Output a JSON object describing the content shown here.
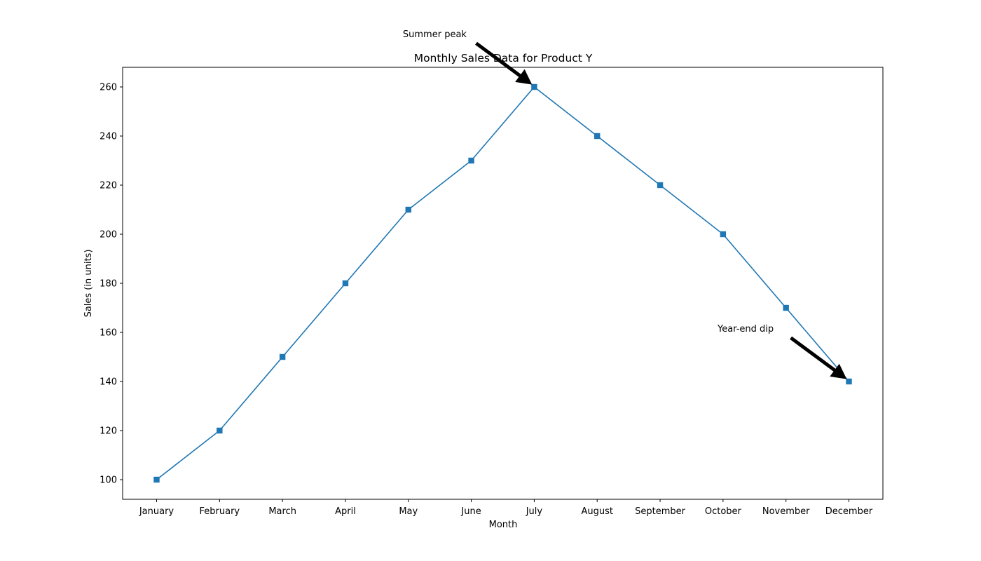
{
  "chart_data": {
    "type": "line",
    "title": "Monthly Sales Data for Product Y",
    "xlabel": "Month",
    "ylabel": "Sales (in units)",
    "categories": [
      "January",
      "February",
      "March",
      "April",
      "May",
      "June",
      "July",
      "August",
      "September",
      "October",
      "November",
      "December"
    ],
    "series": [
      {
        "values": [
          100,
          120,
          150,
          180,
          210,
          230,
          260,
          240,
          220,
          200,
          170,
          140
        ],
        "color": "#1f77b4",
        "marker": "square"
      }
    ],
    "ylim": [
      92,
      268
    ],
    "yticks": [
      100,
      120,
      140,
      160,
      180,
      200,
      220,
      240,
      260
    ],
    "grid": false,
    "legend": "none",
    "annotations": [
      {
        "text": "Summer peak",
        "category": "July",
        "value": 260
      },
      {
        "text": "Year-end dip",
        "category": "December",
        "value": 140
      }
    ],
    "annotation_color": "#000000"
  }
}
